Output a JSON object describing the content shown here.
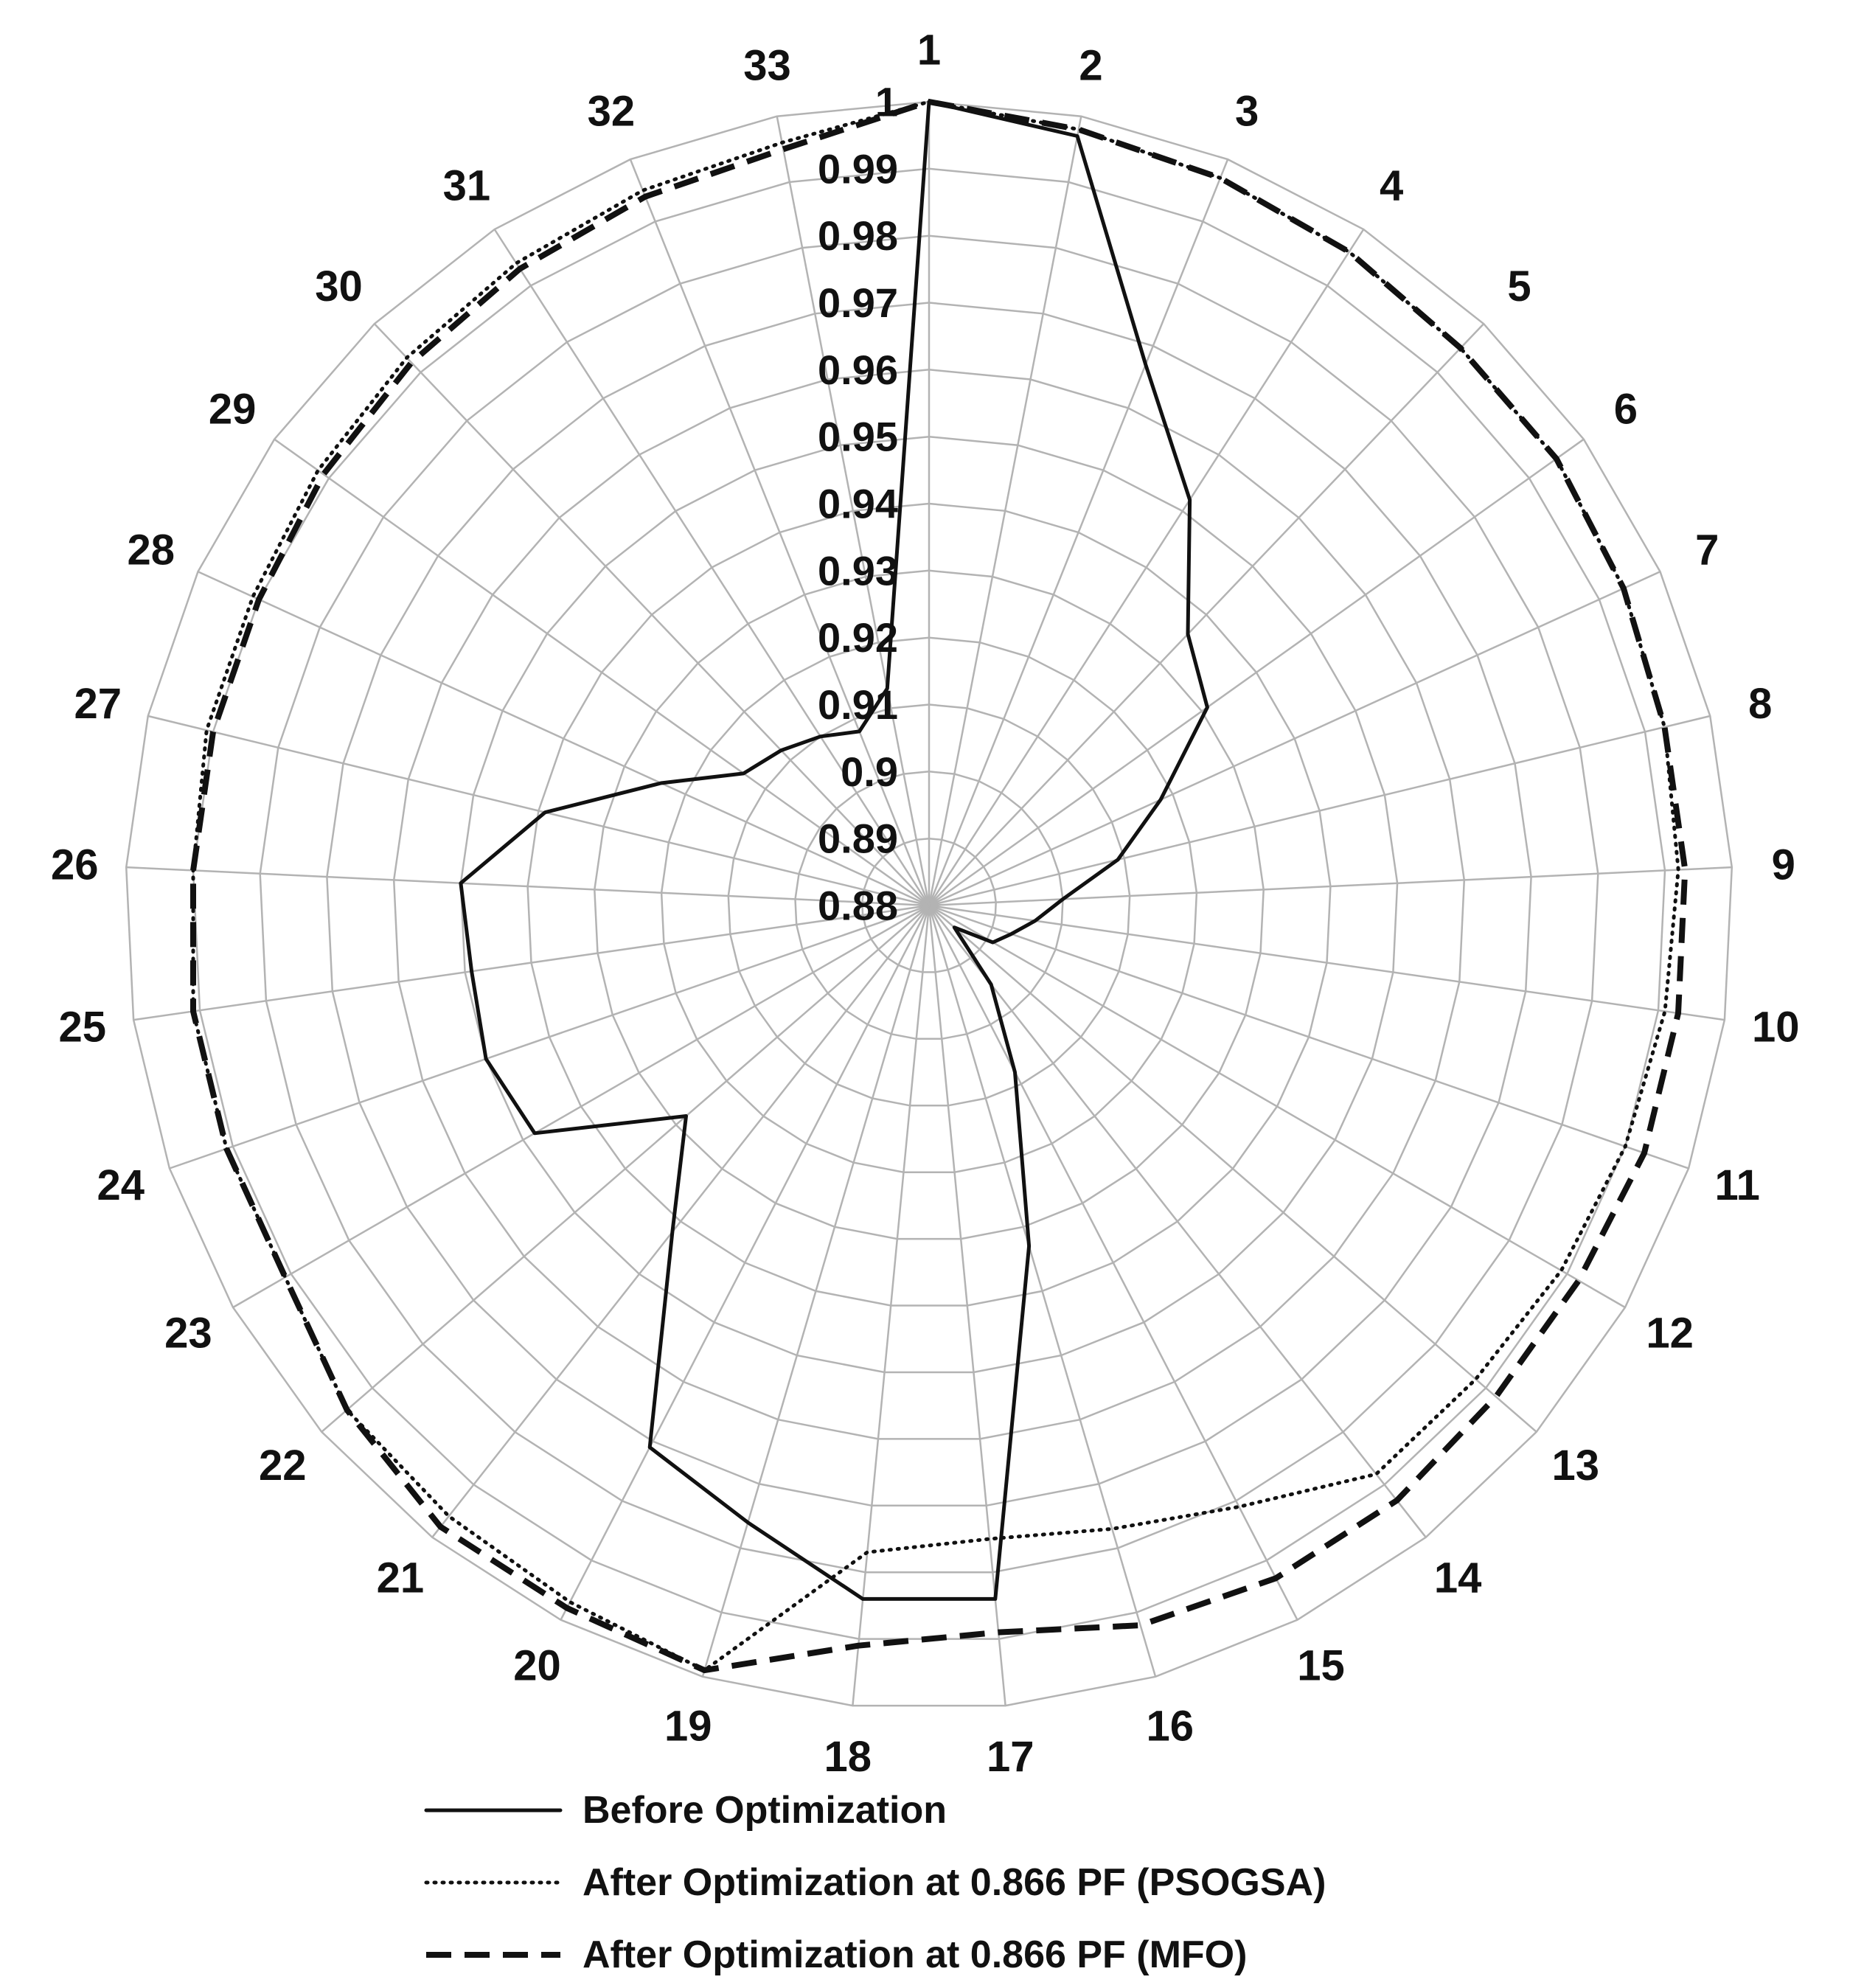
{
  "chart_data": {
    "type": "radar",
    "title": "",
    "categories": [
      "1",
      "2",
      "3",
      "4",
      "5",
      "6",
      "7",
      "8",
      "9",
      "10",
      "11",
      "12",
      "13",
      "14",
      "15",
      "16",
      "17",
      "18",
      "19",
      "20",
      "21",
      "22",
      "23",
      "24",
      "25",
      "26",
      "27",
      "28",
      "29",
      "30",
      "31",
      "32",
      "33"
    ],
    "radial_axis": {
      "min": 0.88,
      "max": 1.0,
      "ticks": [
        "0.88",
        "0.89",
        "0.9",
        "0.91",
        "0.92",
        "0.93",
        "0.94",
        "0.95",
        "0.96",
        "0.97",
        "0.98",
        "0.99",
        "1"
      ]
    },
    "grid": true,
    "legend_position": "bottom",
    "series": [
      {
        "name": "Before Optimization",
        "style": "solid",
        "values": [
          1.0,
          0.997,
          0.967,
          0.952,
          0.936,
          0.931,
          0.918,
          0.909,
          0.9,
          0.896,
          0.893,
          0.891,
          0.885,
          0.895,
          0.908,
          0.933,
          0.984,
          0.984,
          0.976,
          0.971,
          0.942,
          0.928,
          0.948,
          0.95,
          0.949,
          0.95,
          0.939,
          0.924,
          0.914,
          0.912,
          0.91,
          0.908,
          0.913
        ]
      },
      {
        "name": "After Optimization at 0.866 PF (PSOGSA)",
        "style": "dotted",
        "values": [
          1.0,
          0.998,
          0.997,
          0.996,
          0.995,
          0.995,
          0.994,
          0.993,
          0.992,
          0.991,
          0.99,
          0.989,
          0.988,
          0.988,
          0.981,
          0.977,
          0.975,
          0.977,
          0.999,
          0.997,
          0.996,
          0.995,
          0.991,
          0.991,
          0.991,
          0.99,
          0.991,
          0.991,
          0.992,
          0.993,
          0.994,
          0.995,
          0.996
        ]
      },
      {
        "name": "After Optimization at 0.866 PF (MFO)",
        "style": "dashed",
        "values": [
          1.0,
          0.998,
          0.997,
          0.996,
          0.995,
          0.995,
          0.994,
          0.993,
          0.993,
          0.993,
          0.993,
          0.992,
          0.992,
          0.993,
          0.993,
          0.992,
          0.989,
          0.991,
          0.999,
          0.998,
          0.998,
          0.995,
          0.991,
          0.991,
          0.991,
          0.99,
          0.99,
          0.99,
          0.991,
          0.992,
          0.993,
          0.994,
          0.995
        ]
      }
    ]
  }
}
